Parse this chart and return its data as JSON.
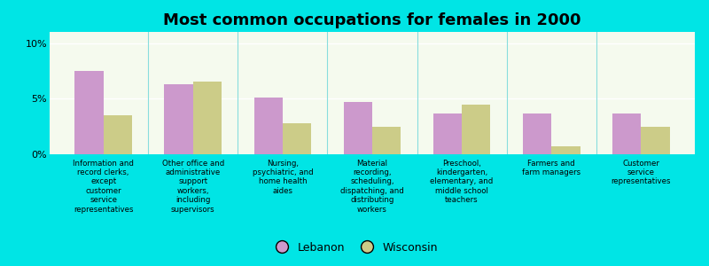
{
  "title": "Most common occupations for females in 2000",
  "categories": [
    "Information and\nrecord clerks,\nexcept\ncustomer\nservice\nrepresentatives",
    "Other office and\nadministrative\nsupport\nworkers,\nincluding\nsupervisors",
    "Nursing,\npsychiatric, and\nhome health\naides",
    "Material\nrecording,\nscheduling,\ndispatching, and\ndistributing\nworkers",
    "Preschool,\nkindergarten,\nelementary, and\nmiddle school\nteachers",
    "Farmers and\nfarm managers",
    "Customer\nservice\nrepresentatives"
  ],
  "lebanon_values": [
    7.5,
    6.3,
    5.1,
    4.7,
    3.7,
    3.7,
    3.7
  ],
  "wisconsin_values": [
    3.5,
    6.5,
    2.8,
    2.5,
    4.5,
    0.7,
    2.5
  ],
  "lebanon_color": "#cc99cc",
  "wisconsin_color": "#cccc88",
  "background_color": "#00e5e5",
  "plot_bg_color": "#f5faee",
  "yticks": [
    0,
    5,
    10
  ],
  "ylim": [
    0,
    11
  ],
  "legend_labels": [
    "Lebanon",
    "Wisconsin"
  ],
  "title_fontsize": 13,
  "tick_label_fontsize": 6.2
}
